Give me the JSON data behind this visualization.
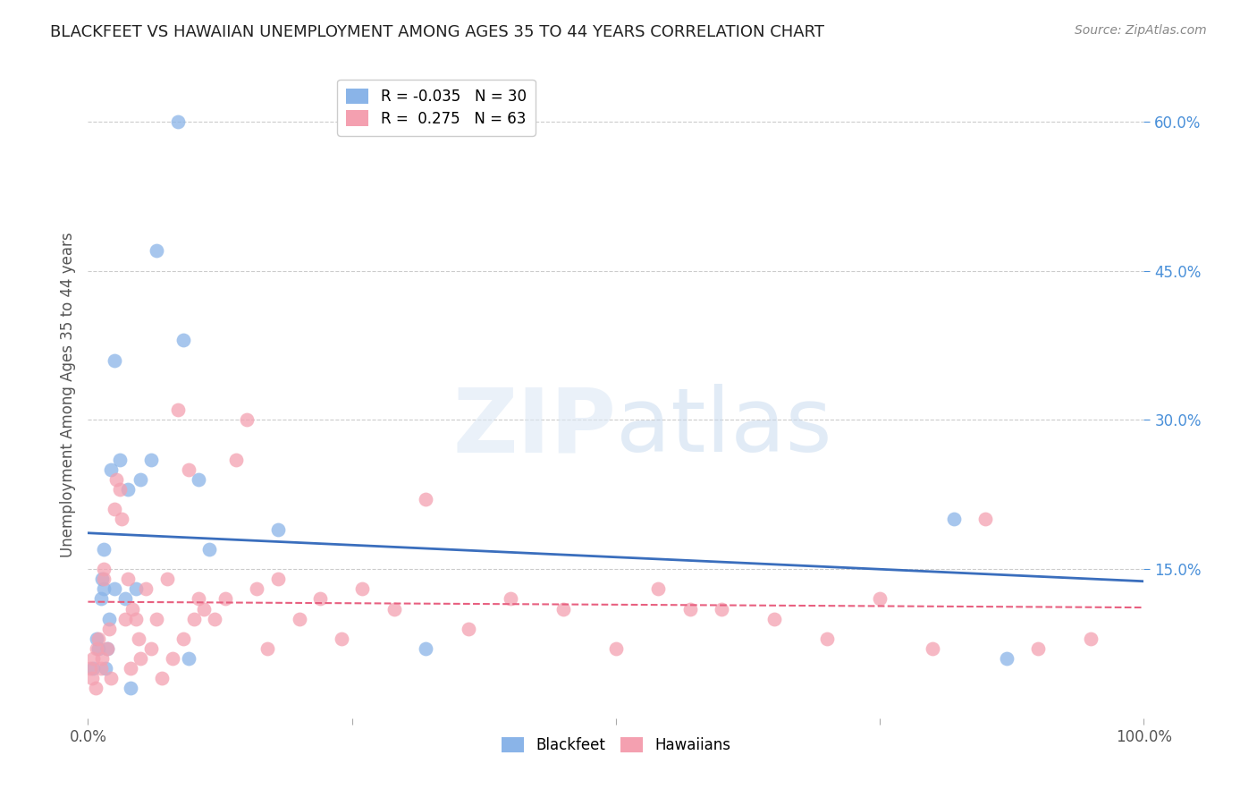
{
  "title": "BLACKFEET VS HAWAIIAN UNEMPLOYMENT AMONG AGES 35 TO 44 YEARS CORRELATION CHART",
  "source": "Source: ZipAtlas.com",
  "ylabel": "Unemployment Among Ages 35 to 44 years",
  "xlim": [
    0.0,
    1.0
  ],
  "ylim": [
    0.0,
    0.65
  ],
  "blackfeet_color": "#8ab4e8",
  "hawaiian_color": "#f4a0b0",
  "blackfeet_line_color": "#3a6ebd",
  "hawaiian_line_color": "#e86080",
  "blackfeet_R": -0.035,
  "blackfeet_N": 30,
  "hawaiian_R": 0.275,
  "hawaiian_N": 63,
  "blackfeet_x": [
    0.005,
    0.008,
    0.01,
    0.012,
    0.013,
    0.015,
    0.015,
    0.017,
    0.018,
    0.02,
    0.022,
    0.025,
    0.025,
    0.03,
    0.035,
    0.038,
    0.04,
    0.045,
    0.05,
    0.06,
    0.065,
    0.085,
    0.09,
    0.095,
    0.105,
    0.115,
    0.18,
    0.32,
    0.82,
    0.87
  ],
  "blackfeet_y": [
    0.05,
    0.08,
    0.07,
    0.12,
    0.14,
    0.17,
    0.13,
    0.05,
    0.07,
    0.1,
    0.25,
    0.36,
    0.13,
    0.26,
    0.12,
    0.23,
    0.03,
    0.13,
    0.24,
    0.26,
    0.47,
    0.6,
    0.38,
    0.06,
    0.24,
    0.17,
    0.19,
    0.07,
    0.2,
    0.06
  ],
  "hawaiian_x": [
    0.002,
    0.004,
    0.005,
    0.007,
    0.008,
    0.01,
    0.012,
    0.013,
    0.015,
    0.015,
    0.018,
    0.02,
    0.022,
    0.025,
    0.027,
    0.03,
    0.032,
    0.035,
    0.038,
    0.04,
    0.042,
    0.045,
    0.048,
    0.05,
    0.055,
    0.06,
    0.065,
    0.07,
    0.075,
    0.08,
    0.085,
    0.09,
    0.095,
    0.1,
    0.105,
    0.11,
    0.12,
    0.13,
    0.14,
    0.15,
    0.16,
    0.17,
    0.18,
    0.2,
    0.22,
    0.24,
    0.26,
    0.29,
    0.32,
    0.36,
    0.4,
    0.45,
    0.5,
    0.54,
    0.57,
    0.6,
    0.65,
    0.7,
    0.75,
    0.8,
    0.85,
    0.9,
    0.95
  ],
  "hawaiian_y": [
    0.05,
    0.04,
    0.06,
    0.03,
    0.07,
    0.08,
    0.05,
    0.06,
    0.15,
    0.14,
    0.07,
    0.09,
    0.04,
    0.21,
    0.24,
    0.23,
    0.2,
    0.1,
    0.14,
    0.05,
    0.11,
    0.1,
    0.08,
    0.06,
    0.13,
    0.07,
    0.1,
    0.04,
    0.14,
    0.06,
    0.31,
    0.08,
    0.25,
    0.1,
    0.12,
    0.11,
    0.1,
    0.12,
    0.26,
    0.3,
    0.13,
    0.07,
    0.14,
    0.1,
    0.12,
    0.08,
    0.13,
    0.11,
    0.22,
    0.09,
    0.12,
    0.11,
    0.07,
    0.13,
    0.11,
    0.11,
    0.1,
    0.08,
    0.12,
    0.07,
    0.2,
    0.07,
    0.08
  ]
}
